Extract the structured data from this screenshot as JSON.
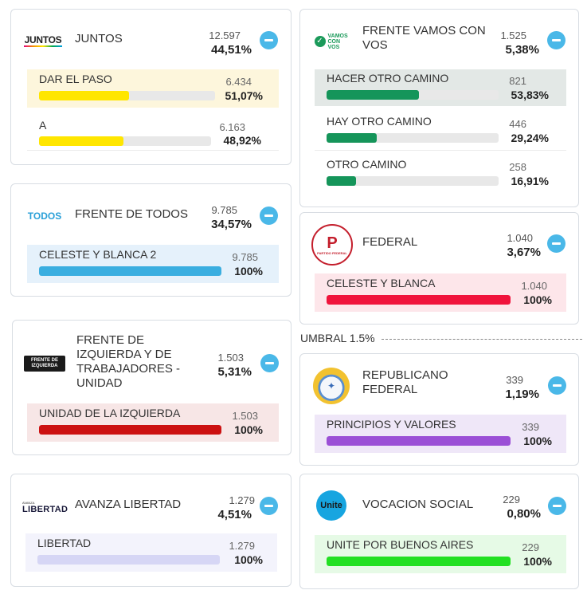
{
  "threshold": {
    "label": "UMBRAL 1.5%"
  },
  "cards": {
    "juntos": {
      "name": "JUNTOS",
      "logo_text": "JUNTOS",
      "votes": "12.597",
      "pct": "44,51%",
      "lists": [
        {
          "name": "DAR EL PASO",
          "votes": "6.434",
          "pct": "51,07%",
          "share": 0.5107,
          "color": "#ffe600",
          "highlight": "#fdf6dc"
        },
        {
          "name": "A",
          "votes": "6.163",
          "pct": "48,92%",
          "share": 0.4892,
          "color": "#ffe600",
          "highlight": ""
        }
      ]
    },
    "frente_de_todos": {
      "name": "FRENTE DE TODOS",
      "logo_text": "TODOS",
      "votes": "9.785",
      "pct": "34,57%",
      "lists": [
        {
          "name": "CELESTE Y BLANCA 2",
          "votes": "9.785",
          "pct": "100%",
          "share": 1.0,
          "color": "#3aaee0",
          "highlight": "#e5f1fb"
        }
      ]
    },
    "fit": {
      "name": "FRENTE DE IZQUIERDA Y DE TRABAJADORES - UNIDAD",
      "logo_text": "FRENTE DE IZQUIERDA",
      "votes": "1.503",
      "pct": "5,31%",
      "lists": [
        {
          "name": "UNIDAD DE LA IZQUIERDA",
          "votes": "1.503",
          "pct": "100%",
          "share": 1.0,
          "color": "#cc1111",
          "highlight": "#f7e6e6"
        }
      ]
    },
    "avanza": {
      "name": "AVANZA LIBERTAD",
      "logo_text": "LIBERTAD",
      "logo_small": "AVANZA",
      "votes": "1.279",
      "pct": "4,51%",
      "lists": [
        {
          "name": "LIBERTAD",
          "votes": "1.279",
          "pct": "100%",
          "share": 1.0,
          "color": "#d6d6f5",
          "highlight": "#f3f3fc"
        }
      ]
    },
    "vamos": {
      "name": "FRENTE VAMOS CON VOS",
      "logo_text": "VAMOS CON VOS",
      "votes": "1.525",
      "pct": "5,38%",
      "lists": [
        {
          "name": "HACER OTRO CAMINO",
          "votes": "821",
          "pct": "53,83%",
          "share": 0.5383,
          "color": "#15955a",
          "highlight": "#e3e8e6"
        },
        {
          "name": "HAY OTRO CAMINO",
          "votes": "446",
          "pct": "29,24%",
          "share": 0.2924,
          "color": "#15955a",
          "highlight": ""
        },
        {
          "name": "OTRO CAMINO",
          "votes": "258",
          "pct": "16,91%",
          "share": 0.1691,
          "color": "#15955a",
          "highlight": ""
        }
      ]
    },
    "federal": {
      "name": "FEDERAL",
      "logo_text": "PARTIDO FEDERAL",
      "votes": "1.040",
      "pct": "3,67%",
      "lists": [
        {
          "name": "CELESTE Y BLANCA",
          "votes": "1.040",
          "pct": "100%",
          "share": 1.0,
          "color": "#f0143c",
          "highlight": "#fde6ea"
        }
      ]
    },
    "republicano": {
      "name": "REPUBLICANO FEDERAL",
      "logo_text": "",
      "votes": "339",
      "pct": "1,19%",
      "lists": [
        {
          "name": "PRINCIPIOS Y VALORES",
          "votes": "339",
          "pct": "100%",
          "share": 1.0,
          "color": "#9b4fd6",
          "highlight": "#efe7f8"
        }
      ]
    },
    "vocacion": {
      "name": "VOCACION SOCIAL",
      "logo_text": "Unite",
      "votes": "229",
      "pct": "0,80%",
      "lists": [
        {
          "name": "UNITE POR BUENOS AIRES",
          "votes": "229",
          "pct": "100%",
          "share": 1.0,
          "color": "#22e022",
          "highlight": "#e6fae6"
        }
      ]
    }
  }
}
